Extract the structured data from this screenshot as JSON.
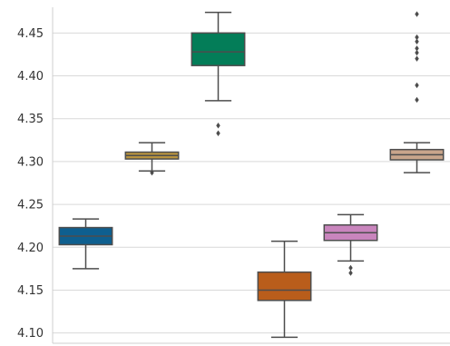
{
  "chart_data": {
    "type": "boxplot",
    "title": "",
    "xlabel": "",
    "ylabel": "",
    "ylim": [
      4.088,
      4.48
    ],
    "yticks": [
      4.1,
      4.15,
      4.2,
      4.25,
      4.3,
      4.35,
      4.4,
      4.45
    ],
    "ytick_labels": [
      "4.10",
      "4.15",
      "4.20",
      "4.25",
      "4.30",
      "4.35",
      "4.40",
      "4.45"
    ],
    "grid": true,
    "boxes": [
      {
        "color": "#0e5f8f",
        "whislo": 4.175,
        "q1": 4.203,
        "med": 4.213,
        "q3": 4.223,
        "whishi": 4.233,
        "fliers": []
      },
      {
        "color": "#b8933e",
        "whislo": 4.289,
        "q1": 4.303,
        "med": 4.307,
        "q3": 4.311,
        "whishi": 4.322,
        "fliers": [
          4.287
        ]
      },
      {
        "color": "#037d58",
        "whislo": 4.371,
        "q1": 4.412,
        "med": 4.428,
        "q3": 4.45,
        "whishi": 4.474,
        "fliers": [
          4.342,
          4.333
        ]
      },
      {
        "color": "#b95d1b",
        "whislo": 4.095,
        "q1": 4.138,
        "med": 4.15,
        "q3": 4.171,
        "whishi": 4.207,
        "fliers": []
      },
      {
        "color": "#c985bd",
        "whislo": 4.184,
        "q1": 4.208,
        "med": 4.217,
        "q3": 4.226,
        "whishi": 4.238,
        "fliers": [
          4.176,
          4.17
        ]
      },
      {
        "color": "#c8a58b",
        "whislo": 4.287,
        "q1": 4.302,
        "med": 4.308,
        "q3": 4.314,
        "whishi": 4.322,
        "fliers": [
          4.472,
          4.445,
          4.44,
          4.432,
          4.427,
          4.42,
          4.389,
          4.372
        ]
      }
    ]
  }
}
